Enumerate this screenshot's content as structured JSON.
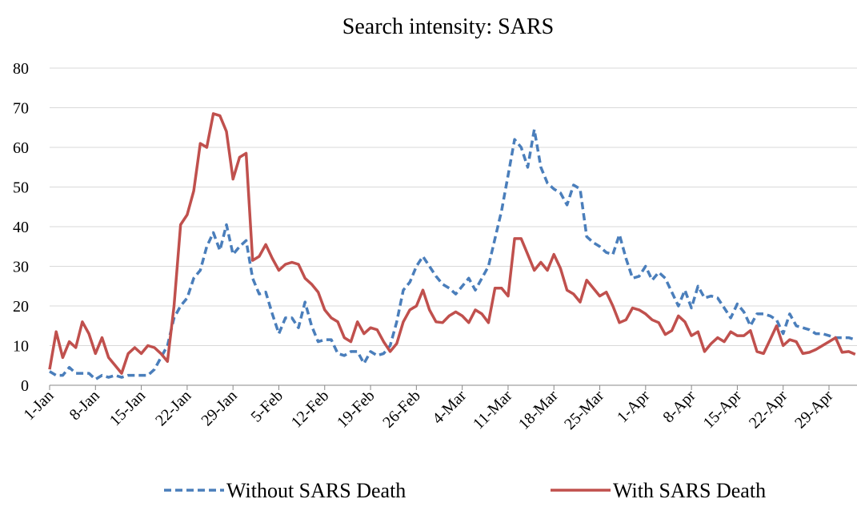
{
  "chart_data": {
    "type": "line",
    "title": "Search intensity: SARS",
    "categories": [
      "1-Jan",
      null,
      null,
      null,
      null,
      null,
      null,
      "8-Jan",
      null,
      null,
      null,
      null,
      null,
      null,
      "15-Jan",
      null,
      null,
      null,
      null,
      null,
      null,
      "22-Jan",
      null,
      null,
      null,
      null,
      null,
      null,
      "29-Jan",
      null,
      null,
      null,
      null,
      null,
      null,
      "5-Feb",
      null,
      null,
      null,
      null,
      null,
      null,
      "12-Feb",
      null,
      null,
      null,
      null,
      null,
      null,
      "19-Feb",
      null,
      null,
      null,
      null,
      null,
      null,
      "26-Feb",
      null,
      null,
      null,
      null,
      null,
      null,
      "4-Mar",
      null,
      null,
      null,
      null,
      null,
      null,
      "11-Mar",
      null,
      null,
      null,
      null,
      null,
      null,
      "18-Mar",
      null,
      null,
      null,
      null,
      null,
      null,
      "25-Mar",
      null,
      null,
      null,
      null,
      null,
      null,
      "1-Apr",
      null,
      null,
      null,
      null,
      null,
      null,
      "8-Apr",
      null,
      null,
      null,
      null,
      null,
      null,
      "15-Apr",
      null,
      null,
      null,
      null,
      null,
      null,
      "22-Apr",
      null,
      null,
      null,
      null,
      null,
      null,
      "29-Apr",
      null,
      null,
      null,
      null
    ],
    "series": [
      {
        "name": "Without SARS Death",
        "color": "#4a7ebb",
        "dashed": true,
        "values": [
          3.5,
          2.5,
          2.5,
          4.5,
          3,
          3,
          3,
          1.5,
          2.5,
          2,
          2.5,
          2,
          2.5,
          2.5,
          2.5,
          2.5,
          4,
          7,
          10,
          17,
          20,
          22,
          27,
          29,
          35,
          38.5,
          34,
          40.5,
          33,
          35,
          36.5,
          27,
          23,
          23.5,
          18,
          13,
          17,
          17,
          14.5,
          21,
          15,
          11,
          11.5,
          11.5,
          8,
          7.5,
          8.5,
          8.5,
          5.5,
          8.5,
          7.5,
          8,
          10,
          16,
          24,
          26,
          30,
          32.5,
          30,
          27.5,
          25.5,
          24.5,
          23,
          25,
          27,
          24,
          27,
          30,
          37,
          44,
          53,
          62,
          60,
          55,
          64.5,
          55,
          51,
          49.5,
          48.5,
          45.5,
          50.5,
          49.5,
          37.5,
          36,
          35,
          33.5,
          33,
          38,
          32,
          27,
          27.5,
          30,
          26.5,
          28.5,
          27,
          23.5,
          20,
          24,
          19.5,
          25,
          22,
          22.5,
          22,
          19.5,
          17,
          20.5,
          18.5,
          15,
          18,
          18,
          17.5,
          16.5,
          13,
          18,
          15,
          14.5,
          14,
          13,
          13,
          12.5,
          12,
          12,
          12,
          11.5
        ]
      },
      {
        "name": "With SARS Death",
        "color": "#c0504d",
        "dashed": false,
        "values": [
          4,
          13.5,
          7,
          11,
          9.5,
          16,
          13,
          8,
          12,
          7,
          5,
          3,
          8,
          9.5,
          8,
          10,
          9.5,
          8,
          6,
          20,
          40.5,
          43,
          49,
          61,
          60,
          68.5,
          68,
          64,
          52,
          57.5,
          58.5,
          31.5,
          32.5,
          35.5,
          32,
          29,
          30.5,
          31,
          30.5,
          27,
          25.5,
          23.5,
          19,
          17,
          16,
          12,
          11,
          16,
          13,
          14.5,
          14,
          11,
          8.5,
          10.5,
          16,
          19,
          20,
          24,
          19,
          16,
          15.8,
          17.5,
          18.5,
          17.5,
          15.8,
          19,
          18,
          15.8,
          24.5,
          24.5,
          22.5,
          37,
          37,
          33,
          29,
          31,
          29,
          33,
          29.5,
          24,
          23,
          21,
          26.5,
          24.5,
          22.5,
          23.5,
          20,
          15.8,
          16.5,
          19.5,
          19,
          18,
          16.5,
          15.8,
          12.8,
          13.8,
          17.5,
          16,
          12.5,
          13.5,
          8.5,
          10.5,
          12,
          11,
          13.5,
          12.5,
          12.5,
          13.8,
          8.5,
          8,
          11.5,
          15,
          10,
          11.5,
          11,
          8,
          8.3,
          9,
          10,
          11,
          12,
          8.3,
          8.5,
          7.8
        ]
      }
    ],
    "ylim": [
      0,
      80
    ],
    "yticks": [
      0,
      10,
      20,
      30,
      40,
      50,
      60,
      70,
      80
    ],
    "grid": true,
    "legend": "bottom"
  }
}
